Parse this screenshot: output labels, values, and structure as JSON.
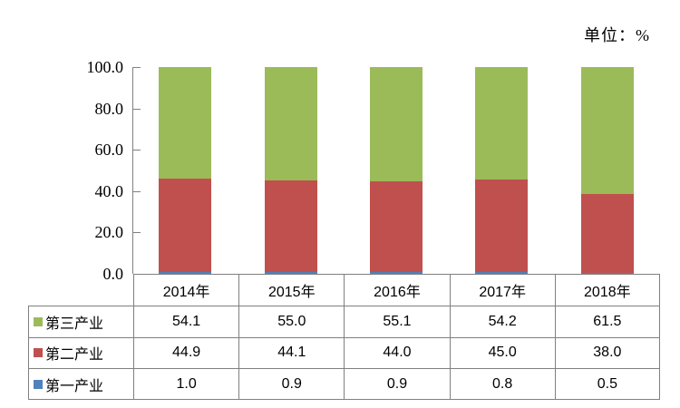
{
  "unit_label": "单位：%",
  "chart_data": {
    "type": "bar",
    "stacked": true,
    "title": "",
    "xlabel": "",
    "ylabel": "",
    "ylim": [
      0,
      100
    ],
    "grid": false,
    "legend_position": "data-table-left",
    "categories": [
      "2014年",
      "2015年",
      "2016年",
      "2017年",
      "2018年"
    ],
    "series": [
      {
        "key": "primary-industry",
        "name": "第一产业",
        "color": "#4F81BD",
        "values": [
          1.0,
          0.9,
          0.9,
          0.8,
          0.5
        ]
      },
      {
        "key": "secondary-industry",
        "name": "第二产业",
        "color": "#C0504D",
        "values": [
          44.9,
          44.1,
          44.0,
          45.0,
          38.0
        ]
      },
      {
        "key": "tertiary-industry",
        "name": "第三产业",
        "color": "#9BBB59",
        "values": [
          54.1,
          55.0,
          55.1,
          54.2,
          61.5
        ]
      }
    ],
    "table_row_order": [
      "第三产业",
      "第二产业",
      "第一产业"
    ],
    "yticks": [
      "100.0",
      "80.0",
      "60.0",
      "40.0",
      "20.0",
      "0.0"
    ],
    "axis_color": "#808080",
    "text_color": "#000000"
  }
}
